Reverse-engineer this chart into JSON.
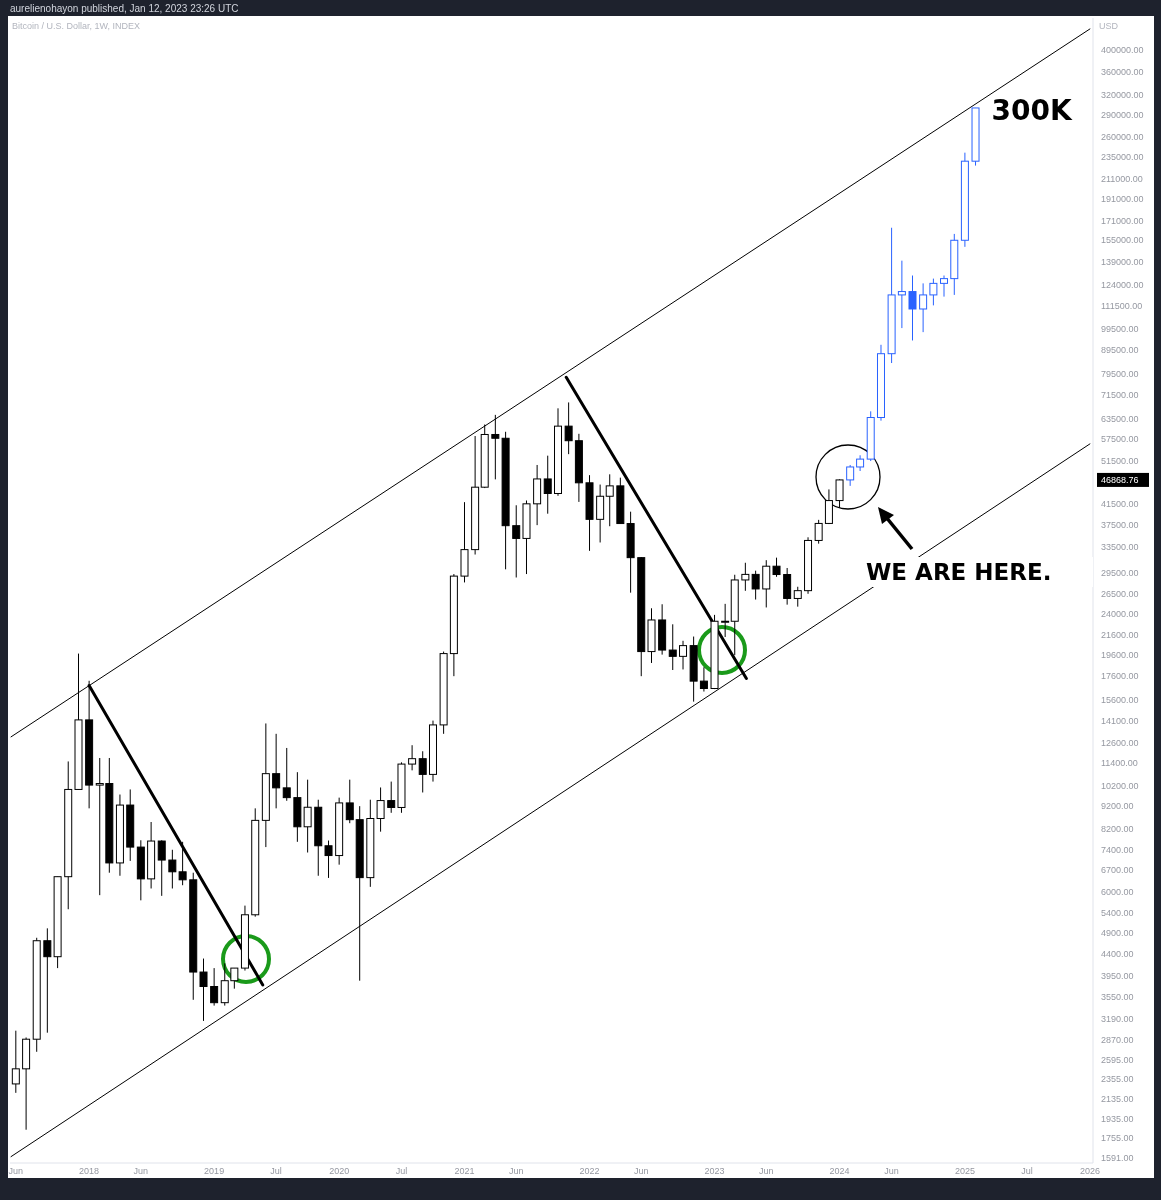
{
  "chart_data": {
    "type": "candlestick",
    "title": "Bitcoin / U.S. Dollar, 1W, INDEX",
    "subtitle": "aurelienohayon published, Jan 12, 2023 23:26 UTC",
    "ylabel": "USD",
    "log": true,
    "grid": false,
    "xlim": [
      "2017-05-15",
      "2026-01-10"
    ],
    "xticks": [
      {
        "value": "2017-06-01",
        "label": "Jun"
      },
      {
        "value": "2018-01-01",
        "label": "2018"
      },
      {
        "value": "2018-06-01",
        "label": "Jun"
      },
      {
        "value": "2019-01-01",
        "label": "2019"
      },
      {
        "value": "2019-07-01",
        "label": "Jul"
      },
      {
        "value": "2020-01-01",
        "label": "2020"
      },
      {
        "value": "2020-07-01",
        "label": "Jul"
      },
      {
        "value": "2021-01-01",
        "label": "2021"
      },
      {
        "value": "2021-06-01",
        "label": "Jun"
      },
      {
        "value": "2022-01-01",
        "label": "2022"
      },
      {
        "value": "2022-06-01",
        "label": "Jun"
      },
      {
        "value": "2023-01-01",
        "label": "2023"
      },
      {
        "value": "2023-06-01",
        "label": "Jun"
      },
      {
        "value": "2024-01-01",
        "label": "2024"
      },
      {
        "value": "2024-06-01",
        "label": "Jun"
      },
      {
        "value": "2025-01-01",
        "label": "2025"
      },
      {
        "value": "2025-07-01",
        "label": "Jul"
      },
      {
        "value": "2026-01-01",
        "label": "2026"
      }
    ],
    "ylim": [
      1550,
      470000
    ],
    "yticks": [
      {
        "value": 1591,
        "label": "1591.00"
      },
      {
        "value": 1755,
        "label": "1755.00"
      },
      {
        "value": 1935,
        "label": "1935.00"
      },
      {
        "value": 2135,
        "label": "2135.00"
      },
      {
        "value": 2355,
        "label": "2355.00"
      },
      {
        "value": 2595,
        "label": "2595.00"
      },
      {
        "value": 2870,
        "label": "2870.00"
      },
      {
        "value": 3190,
        "label": "3190.00"
      },
      {
        "value": 3550,
        "label": "3550.00"
      },
      {
        "value": 3950,
        "label": "3950.00"
      },
      {
        "value": 4400,
        "label": "4400.00"
      },
      {
        "value": 4900,
        "label": "4900.00"
      },
      {
        "value": 5400,
        "label": "5400.00"
      },
      {
        "value": 6000,
        "label": "6000.00"
      },
      {
        "value": 6700,
        "label": "6700.00"
      },
      {
        "value": 7400,
        "label": "7400.00"
      },
      {
        "value": 8200,
        "label": "8200.00"
      },
      {
        "value": 9200,
        "label": "9200.00"
      },
      {
        "value": 10200,
        "label": "10200.00"
      },
      {
        "value": 11400,
        "label": "11400.00"
      },
      {
        "value": 12600,
        "label": "12600.00"
      },
      {
        "value": 14100,
        "label": "14100.00"
      },
      {
        "value": 15600,
        "label": "15600.00"
      },
      {
        "value": 17600,
        "label": "17600.00"
      },
      {
        "value": 19600,
        "label": "19600.00"
      },
      {
        "value": 21600,
        "label": "21600.00"
      },
      {
        "value": 24000,
        "label": "24000.00"
      },
      {
        "value": 26500,
        "label": "26500.00"
      },
      {
        "value": 29500,
        "label": "29500.00"
      },
      {
        "value": 33500,
        "label": "33500.00"
      },
      {
        "value": 37500,
        "label": "37500.00"
      },
      {
        "value": 41500,
        "label": "41500.00"
      },
      {
        "value": 51500,
        "label": "51500.00"
      },
      {
        "value": 57500,
        "label": "57500.00"
      },
      {
        "value": 63500,
        "label": "63500.00"
      },
      {
        "value": 71500,
        "label": "71500.00"
      },
      {
        "value": 79500,
        "label": "79500.00"
      },
      {
        "value": 89500,
        "label": "89500.00"
      },
      {
        "value": 99500,
        "label": "99500.00"
      },
      {
        "value": 111500,
        "label": "111500.00"
      },
      {
        "value": 124000,
        "label": "124000.00"
      },
      {
        "value": 139000,
        "label": "139000.00"
      },
      {
        "value": 155000,
        "label": "155000.00"
      },
      {
        "value": 171000,
        "label": "171000.00"
      },
      {
        "value": 191000,
        "label": "191000.00"
      },
      {
        "value": 211000,
        "label": "211000.00"
      },
      {
        "value": 235000,
        "label": "235000.00"
      },
      {
        "value": 260000,
        "label": "260000.00"
      },
      {
        "value": 290000,
        "label": "290000.00"
      },
      {
        "value": 320000,
        "label": "320000.00"
      },
      {
        "value": 360000,
        "label": "360000.00"
      },
      {
        "value": 400000,
        "label": "400000.00"
      }
    ],
    "annotations": [
      {
        "text": "300K",
        "x": "2025-02",
        "y": 300000
      },
      "WE ARE HERE.",
      "46868.76"
    ],
    "series": [
      {
        "color": "#000000",
        "x": [
          "2017-06",
          "2017-07",
          "2017-08",
          "2017-09",
          "2017-10",
          "2017-11",
          "2017-12",
          "2018-01",
          "2018-02",
          "2018-03",
          "2018-04",
          "2018-05",
          "2018-06",
          "2018-07",
          "2018-08",
          "2018-09",
          "2018-10",
          "2018-11",
          "2018-12",
          "2019-01",
          "2019-02",
          "2019-03",
          "2019-04",
          "2019-05",
          "2019-06",
          "2019-07",
          "2019-08",
          "2019-09",
          "2019-10",
          "2019-11",
          "2019-12",
          "2020-01",
          "2020-02",
          "2020-03",
          "2020-04",
          "2020-05",
          "2020-06",
          "2020-07",
          "2020-08",
          "2020-09",
          "2020-10",
          "2020-11",
          "2020-12",
          "2021-01",
          "2021-02",
          "2021-03",
          "2021-04",
          "2021-05",
          "2021-06",
          "2021-07",
          "2021-08",
          "2021-09",
          "2021-10",
          "2021-11",
          "2021-12",
          "2022-01",
          "2022-02",
          "2022-03",
          "2022-04",
          "2022-05",
          "2022-06",
          "2022-07",
          "2022-08",
          "2022-09",
          "2022-10",
          "2022-11",
          "2022-12",
          "2023-01",
          "2023-02",
          "2023-03",
          "2023-04",
          "2023-05",
          "2023-06",
          "2023-07",
          "2023-08",
          "2023-09",
          "2023-10",
          "2023-11",
          "2023-12",
          "2024-01"
        ],
        "ohlc": [
          [
            2300,
            3000,
            2200,
            2480
          ],
          [
            2480,
            2900,
            1830,
            2875
          ],
          [
            2875,
            4770,
            2700,
            4700
          ],
          [
            4700,
            5000,
            2970,
            4340
          ],
          [
            4340,
            6470,
            4100,
            6470
          ],
          [
            6470,
            11500,
            5500,
            10000
          ],
          [
            10000,
            19700,
            10000,
            14150
          ],
          [
            14150,
            17200,
            9100,
            10220
          ],
          [
            10220,
            11700,
            5900,
            10300
          ],
          [
            10300,
            11700,
            6600,
            6930
          ],
          [
            6930,
            9750,
            6500,
            9250
          ],
          [
            9250,
            10000,
            7000,
            7500
          ],
          [
            7500,
            7760,
            5750,
            6400
          ],
          [
            6400,
            8500,
            6100,
            7730
          ],
          [
            7730,
            7760,
            5880,
            7030
          ],
          [
            7030,
            7400,
            6100,
            6630
          ],
          [
            6630,
            7700,
            6200,
            6370
          ],
          [
            6370,
            6600,
            3500,
            4020
          ],
          [
            4020,
            4300,
            3150,
            3740
          ],
          [
            3740,
            4100,
            3400,
            3450
          ],
          [
            3450,
            4200,
            3400,
            3850
          ],
          [
            3850,
            4100,
            3700,
            4100
          ],
          [
            4100,
            5600,
            4050,
            5350
          ],
          [
            5350,
            9100,
            5300,
            8570
          ],
          [
            8570,
            13900,
            7500,
            10820
          ],
          [
            10820,
            13200,
            9100,
            10080
          ],
          [
            10080,
            12300,
            9450,
            9600
          ],
          [
            9600,
            10900,
            7700,
            8300
          ],
          [
            8300,
            10500,
            7300,
            9150
          ],
          [
            9150,
            9500,
            6500,
            7550
          ],
          [
            7550,
            7750,
            6430,
            7190
          ],
          [
            7190,
            9600,
            6870,
            9350
          ],
          [
            9350,
            10500,
            8450,
            8600
          ],
          [
            8600,
            9200,
            3850,
            6440
          ],
          [
            6440,
            9500,
            6150,
            8650
          ],
          [
            8650,
            10100,
            8100,
            9460
          ],
          [
            9460,
            10400,
            8900,
            9140
          ],
          [
            9140,
            11450,
            8900,
            11350
          ],
          [
            11350,
            12470,
            11000,
            11660
          ],
          [
            11660,
            12100,
            9850,
            10780
          ],
          [
            10780,
            14100,
            10400,
            13800
          ],
          [
            13800,
            19900,
            13200,
            19700
          ],
          [
            19700,
            29300,
            17600,
            29000
          ],
          [
            29000,
            41950,
            28100,
            33100
          ],
          [
            33100,
            58350,
            32300,
            45200
          ],
          [
            45200,
            61800,
            45000,
            58800
          ],
          [
            58800,
            64850,
            47000,
            57700
          ],
          [
            57700,
            59600,
            30000,
            37300
          ],
          [
            37300,
            41300,
            28800,
            35000
          ],
          [
            35000,
            42300,
            29300,
            41600
          ],
          [
            41600,
            50500,
            37400,
            47100
          ],
          [
            47100,
            52900,
            39600,
            43800
          ],
          [
            43800,
            67000,
            43300,
            61300
          ],
          [
            61300,
            69000,
            53300,
            57000
          ],
          [
            57000,
            59000,
            42000,
            46200
          ],
          [
            46200,
            48000,
            32900,
            38500
          ],
          [
            38500,
            45800,
            34300,
            43200
          ],
          [
            43200,
            48200,
            37200,
            45500
          ],
          [
            45500,
            47400,
            37700,
            37700
          ],
          [
            37700,
            40000,
            26700,
            31800
          ],
          [
            31800,
            31900,
            17600,
            19900
          ],
          [
            19900,
            24700,
            18800,
            23300
          ],
          [
            23300,
            25200,
            19600,
            20050
          ],
          [
            20050,
            22800,
            18150,
            19430
          ],
          [
            19430,
            21000,
            18200,
            20500
          ],
          [
            20500,
            21450,
            15500,
            17170
          ],
          [
            17170,
            18400,
            16300,
            16550
          ],
          [
            16550,
            23900,
            16500,
            23150
          ],
          [
            23150,
            25250,
            21400,
            23150
          ],
          [
            23150,
            29200,
            19550,
            28450
          ],
          [
            28450,
            31000,
            26950,
            29250
          ],
          [
            29250,
            29800,
            25800,
            27200
          ],
          [
            27200,
            31400,
            24800,
            30470
          ],
          [
            30470,
            31800,
            28900,
            29230
          ],
          [
            29230,
            30200,
            25150,
            25940
          ],
          [
            25940,
            27500,
            24900,
            26970
          ],
          [
            26970,
            35200,
            26550,
            34650
          ],
          [
            34650,
            38400,
            34100,
            37720
          ],
          [
            37720,
            44700,
            37600,
            42280
          ],
          [
            42280,
            47000,
            40800,
            46868.76
          ]
        ]
      },
      {
        "color": "#2962ff",
        "x": [
          "2024-02",
          "2024-03",
          "2024-04",
          "2024-05",
          "2024-06",
          "2024-07",
          "2024-08",
          "2024-09",
          "2024-10",
          "2024-11",
          "2024-12",
          "2025-01",
          "2025-02"
        ],
        "ohlc": [
          [
            46868.76,
            50500,
            45500,
            50000
          ],
          [
            50000,
            53000,
            49000,
            52000
          ],
          [
            52000,
            66000,
            51500,
            64000
          ],
          [
            64000,
            92000,
            63000,
            88000
          ],
          [
            88000,
            165000,
            84000,
            118000
          ],
          [
            118000,
            140000,
            100000,
            120000
          ],
          [
            120000,
            130000,
            94000,
            110000
          ],
          [
            110000,
            125000,
            98000,
            118000
          ],
          [
            118000,
            128000,
            112000,
            125000
          ],
          [
            125000,
            130000,
            117000,
            128000
          ],
          [
            128000,
            160000,
            118000,
            155000
          ],
          [
            155000,
            240000,
            150000,
            230000
          ],
          [
            230000,
            300000,
            225000,
            300000
          ]
        ]
      },
      {
        "type": "line",
        "color": "#000000",
        "x": [
          "2017-05-18",
          "2026-01-01"
        ],
        "values": [
          13000,
          445000
        ]
      },
      {
        "type": "line",
        "color": "#000000",
        "x": [
          "2017-05-18",
          "2026-01-01"
        ],
        "values": [
          1600,
          56100
        ]
      },
      {
        "type": "line",
        "color": "#000000",
        "x": [
          "2018-01-01",
          "2019-05-23"
        ],
        "values": [
          16800,
          3770
        ]
      },
      {
        "type": "line",
        "color": "#000000",
        "x": [
          "2021-10-25",
          "2023-04-04"
        ],
        "values": [
          78200,
          17400
        ]
      }
    ]
  }
}
